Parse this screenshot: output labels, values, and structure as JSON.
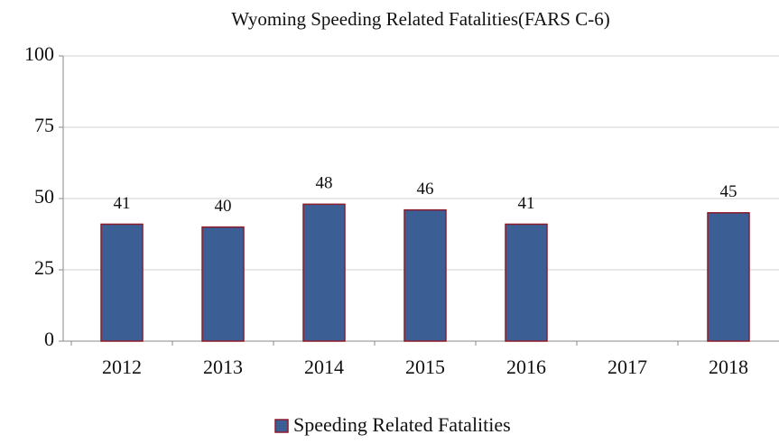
{
  "chart_data": {
    "type": "bar",
    "title": "Wyoming Speeding Related Fatalities(FARS C-6)",
    "categories": [
      "2012",
      "2013",
      "2014",
      "2015",
      "2016",
      "2017",
      "2018"
    ],
    "series": [
      {
        "name": "Speeding Related Fatalities",
        "color": "#3b5f94",
        "values": [
          41,
          40,
          48,
          46,
          41,
          null,
          45
        ]
      }
    ],
    "ylim": [
      0,
      100
    ],
    "yticks": [
      0,
      25,
      50,
      75,
      100
    ],
    "grid": true,
    "legend": "bottom"
  }
}
